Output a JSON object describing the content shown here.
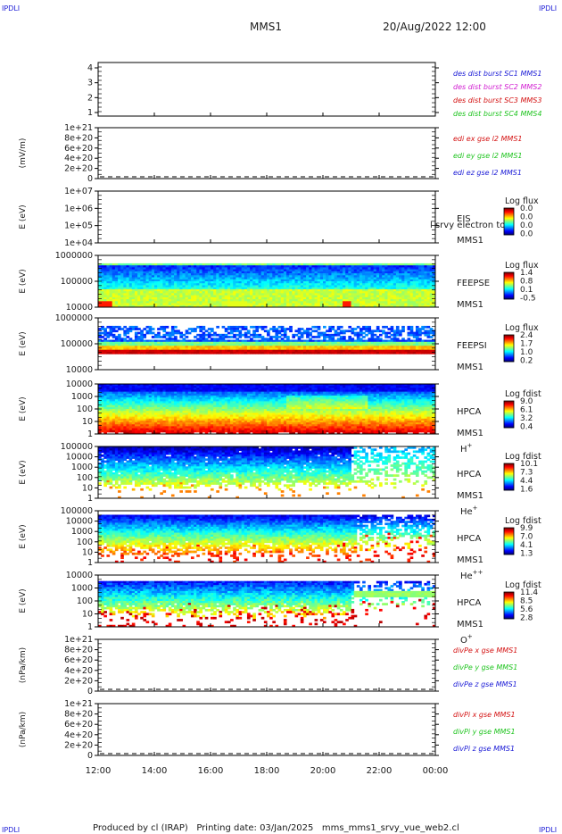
{
  "corner_tag": "IPDLI",
  "header": {
    "mission": "MMS1",
    "date": "20/Aug/2022 12:00"
  },
  "footer": "Produced by cl (IRAP)   Printing date: 03/Jan/2025   mms_mms1_srvy_vue_web2.cl",
  "colors": {
    "blue": "#1b1bd6",
    "magenta": "#d21fd2",
    "red": "#d41313",
    "green": "#1fc41f",
    "text": "#1a1a1a"
  },
  "x_axis": {
    "ticks": [
      "12:00",
      "14:00",
      "16:00",
      "18:00",
      "20:00",
      "22:00",
      "00:00"
    ]
  },
  "chart_data": [
    {
      "type": "line",
      "panel": "des-dist",
      "ylim": [
        0.5,
        4.5
      ],
      "yticks": [
        "4",
        "3",
        "2",
        "1"
      ],
      "ylabel": "",
      "legend": [
        {
          "text": "des dist burst SC1 MMS1",
          "color": "#1b1bd6"
        },
        {
          "text": "des dist burst SC2 MMS2",
          "color": "#d21fd2"
        },
        {
          "text": "des dist burst SC3 MMS3",
          "color": "#d41313"
        },
        {
          "text": "des dist burst SC4 MMS4",
          "color": "#1fc41f"
        }
      ],
      "series": []
    },
    {
      "type": "line",
      "panel": "edi",
      "ylabel": "(mV/m)",
      "yticks": [
        "1e+21",
        "8e+20",
        "6e+20",
        "4e+20",
        "2e+20",
        "0"
      ],
      "zero_line": true,
      "legend": [
        {
          "text": "edi ex gse l2 MMS1",
          "color": "#d41313"
        },
        {
          "text": "edi ey gse l2 MMS1",
          "color": "#1fc41f"
        },
        {
          "text": "edi ez gse l2 MMS1",
          "color": "#1b1bd6"
        }
      ],
      "series": []
    },
    {
      "type": "heatmap",
      "panel": "eis",
      "ylabel": "E (eV)",
      "yticks": [
        "1e+07",
        "1e+06",
        "1e+05",
        "1e+04"
      ],
      "labels": [
        "EIS",
        "MMS1"
      ],
      "overflow_label": "l srvy electron to",
      "colorbar": {
        "title": "Log flux",
        "ticks": [
          "0.0",
          "0.0",
          "0.0",
          "0.0"
        ]
      },
      "fill": "empty"
    },
    {
      "type": "heatmap",
      "panel": "feepse",
      "ylabel": "E (eV)",
      "yticks": [
        "1000000",
        "100000",
        "10000"
      ],
      "labels": [
        "FEEPSE",
        "MMS1"
      ],
      "colorbar": {
        "title": "Log flux",
        "ticks": [
          "1.4",
          "0.8",
          "0.1",
          "-0.5"
        ]
      },
      "fill": "feepse"
    },
    {
      "type": "heatmap",
      "panel": "feepsi",
      "ylabel": "E (eV)",
      "yticks": [
        "1000000",
        "100000",
        "10000"
      ],
      "labels": [
        "FEEPSI",
        "MMS1"
      ],
      "colorbar": {
        "title": "Log flux",
        "ticks": [
          "2.4",
          "1.7",
          "1.0",
          "0.2"
        ]
      },
      "fill": "feepsi"
    },
    {
      "type": "heatmap",
      "panel": "hpca-h",
      "ylabel": "E (eV)",
      "yticks": [
        "10000",
        "1000",
        "100",
        "10",
        "1"
      ],
      "labels": [
        "HPCA",
        "MMS1"
      ],
      "species": "H",
      "species_sup": "+",
      "colorbar": {
        "title": "Log fdist",
        "ticks": [
          "9.0",
          "6.1",
          "3.2",
          "0.4"
        ]
      },
      "fill": "hpca-h"
    },
    {
      "type": "heatmap",
      "panel": "hpca-he",
      "ylabel": "E (eV)",
      "yticks": [
        "100000",
        "10000",
        "1000",
        "100",
        "10",
        "1"
      ],
      "labels": [
        "HPCA",
        "MMS1"
      ],
      "species": "He",
      "species_sup": "+",
      "colorbar": {
        "title": "Log fdist",
        "ticks": [
          "10.1",
          "7.3",
          "4.4",
          "1.6"
        ]
      },
      "fill": "hpca-he"
    },
    {
      "type": "heatmap",
      "panel": "hpca-hepp",
      "ylabel": "E (eV)",
      "yticks": [
        "100000",
        "10000",
        "1000",
        "100",
        "10",
        "1"
      ],
      "labels": [
        "HPCA",
        "MMS1"
      ],
      "species": "He",
      "species_sup": "++",
      "colorbar": {
        "title": "Log fdist",
        "ticks": [
          "9.9",
          "7.0",
          "4.1",
          "1.3"
        ]
      },
      "fill": "hpca-hepp"
    },
    {
      "type": "heatmap",
      "panel": "hpca-o",
      "ylabel": "E (eV)",
      "yticks": [
        "10000",
        "1000",
        "100",
        "10",
        "1"
      ],
      "labels": [
        "HPCA",
        "MMS1"
      ],
      "species": "O",
      "species_sup": "+",
      "colorbar": {
        "title": "Log fdist",
        "ticks": [
          "11.4",
          "8.5",
          "5.6",
          "2.8"
        ]
      },
      "fill": "hpca-o"
    },
    {
      "type": "line",
      "panel": "divpe",
      "ylabel": "(nPa/km)",
      "yticks": [
        "1e+21",
        "8e+20",
        "6e+20",
        "4e+20",
        "2e+20",
        "0"
      ],
      "zero_line": true,
      "legend": [
        {
          "text": "divPe x gse MMS1",
          "color": "#d41313"
        },
        {
          "text": "divPe y gse MMS1",
          "color": "#1fc41f"
        },
        {
          "text": "divPe z gse MMS1",
          "color": "#1b1bd6"
        }
      ],
      "series": []
    },
    {
      "type": "line",
      "panel": "divpi",
      "ylabel": "(nPa/km)",
      "yticks": [
        "1e+21",
        "8e+20",
        "6e+20",
        "4e+20",
        "2e+20",
        "0"
      ],
      "zero_line": true,
      "legend": [
        {
          "text": "divPi x gse MMS1",
          "color": "#d41313"
        },
        {
          "text": "divPi y gse MMS1",
          "color": "#1fc41f"
        },
        {
          "text": "divPi z gse MMS1",
          "color": "#1b1bd6"
        }
      ],
      "series": []
    }
  ]
}
